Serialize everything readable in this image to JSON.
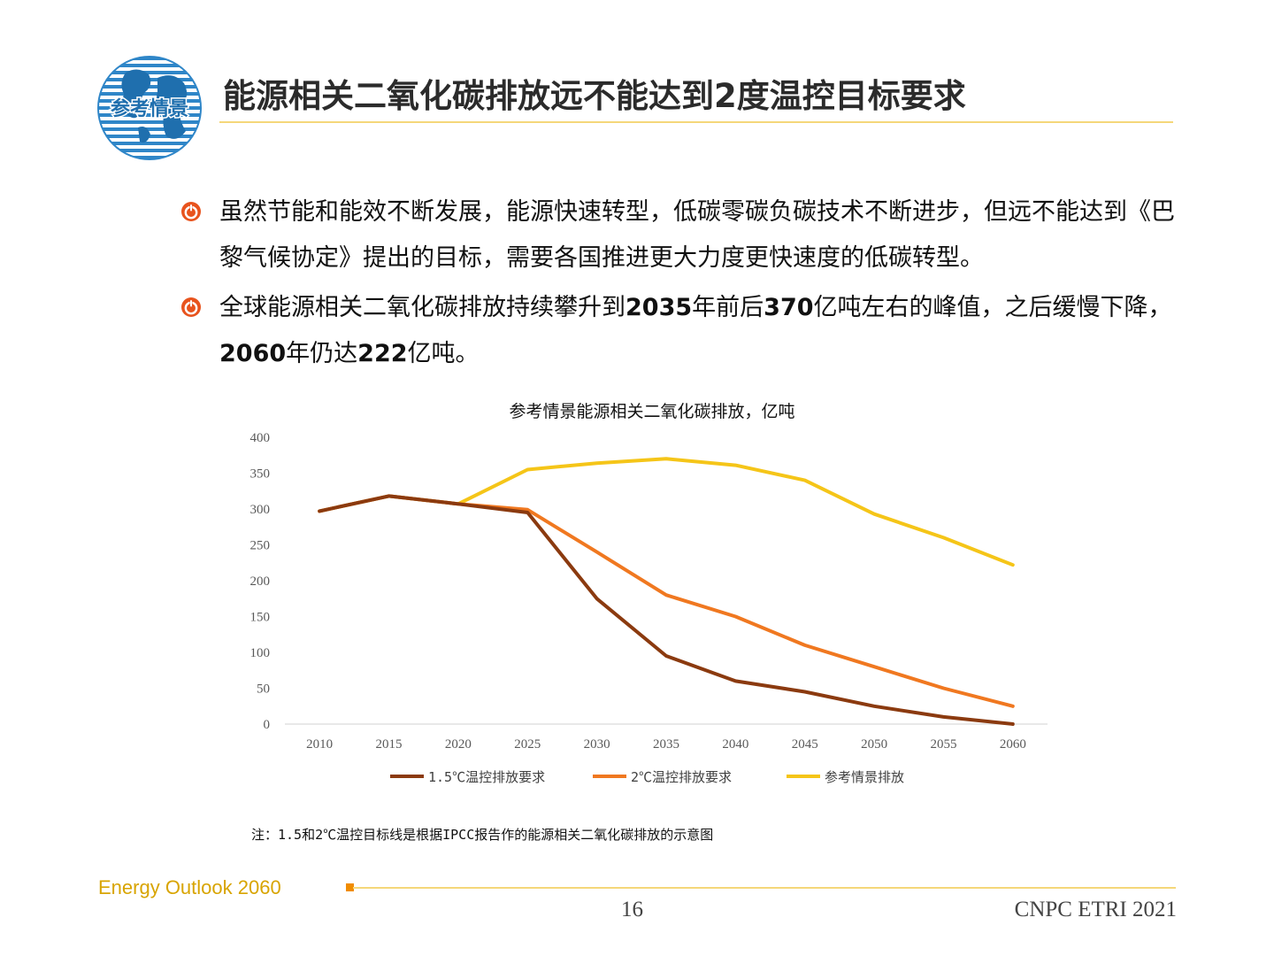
{
  "header": {
    "logo_text": "参考情景",
    "title": "能源相关二氧化碳排放远不能达到2度温控目标要求"
  },
  "bullets": [
    {
      "parts": [
        {
          "t": "虽然节能和能效不断发展，能源快速转型，低碳零碳负碳技术不断进步，但远不能达到《巴黎气候协定》提出的目标，需要各国推进更大力度更快速度的低碳转型。",
          "b": false
        }
      ]
    },
    {
      "parts": [
        {
          "t": "全球能源相关二氧化碳排放持续攀升到",
          "b": false
        },
        {
          "t": "2035",
          "b": true
        },
        {
          "t": "年前后",
          "b": false
        },
        {
          "t": "370",
          "b": true
        },
        {
          "t": "亿吨左右的峰值，之后缓慢下降，",
          "b": false
        },
        {
          "t": "2060",
          "b": true
        },
        {
          "t": "年仍达",
          "b": false
        },
        {
          "t": "222",
          "b": true
        },
        {
          "t": "亿吨。",
          "b": false
        }
      ]
    }
  ],
  "chart_data": {
    "type": "line",
    "title": "参考情景能源相关二氧化碳排放，亿吨",
    "xlabel": "",
    "ylabel": "",
    "ylim": [
      0,
      400
    ],
    "yticks": [
      0,
      50,
      100,
      150,
      200,
      250,
      300,
      350,
      400
    ],
    "categories": [
      "2010",
      "2015",
      "2020",
      "2025",
      "2030",
      "2035",
      "2040",
      "2045",
      "2050",
      "2055",
      "2060"
    ],
    "series": [
      {
        "name": "1.5℃温控排放要求",
        "color": "#8b3a0f",
        "values": [
          297,
          318,
          307,
          295,
          175,
          95,
          60,
          45,
          25,
          10,
          0
        ]
      },
      {
        "name": "2℃温控排放要求",
        "color": "#f07820",
        "values": [
          297,
          318,
          307,
          299,
          240,
          180,
          150,
          110,
          80,
          50,
          25
        ]
      },
      {
        "name": "参考情景排放",
        "color": "#f5c518",
        "values": [
          297,
          318,
          307,
          355,
          364,
          370,
          361,
          340,
          293,
          260,
          222
        ]
      }
    ],
    "legend_position": "bottom",
    "grid": false
  },
  "note": "注：1.5和2℃温控目标线是根据IPCC报告作的能源相关二氧化碳排放的示意图",
  "footer": {
    "brand": "Energy Outlook 2060",
    "page_number": "16",
    "organization": "CNPC ETRI 2021"
  },
  "colors": {
    "accent_line": "#f5d77a",
    "bullet_icon": "#e8531d",
    "brand_text": "#d8a400",
    "logo_blue": "#2f86c8"
  }
}
